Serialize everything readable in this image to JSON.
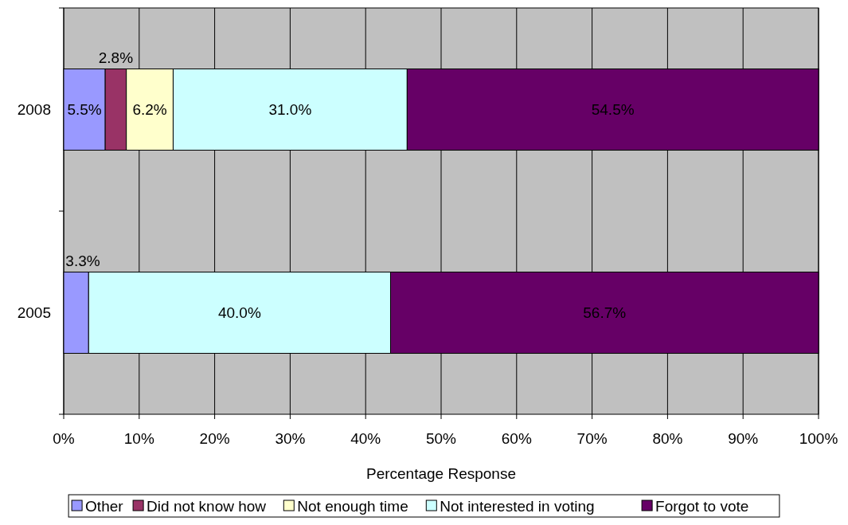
{
  "chart_data": {
    "type": "bar",
    "orientation": "horizontal",
    "stacked": true,
    "xlabel": "Percentage Response",
    "categories": [
      "2008",
      "2005"
    ],
    "xlim": [
      0,
      100
    ],
    "xticks": [
      {
        "value": 0,
        "label": "0%"
      },
      {
        "value": 10,
        "label": "10%"
      },
      {
        "value": 20,
        "label": "20%"
      },
      {
        "value": 30,
        "label": "30%"
      },
      {
        "value": 40,
        "label": "40%"
      },
      {
        "value": 50,
        "label": "50%"
      },
      {
        "value": 60,
        "label": "60%"
      },
      {
        "value": 70,
        "label": "70%"
      },
      {
        "value": 80,
        "label": "80%"
      },
      {
        "value": 90,
        "label": "90%"
      },
      {
        "value": 100,
        "label": "100%"
      }
    ],
    "grid": "x",
    "legend": "bottom",
    "series": [
      {
        "name": "Other",
        "color": "#9999ff",
        "values": [
          5.5,
          3.3
        ],
        "value_labels": [
          "5.5%",
          "3.3%"
        ]
      },
      {
        "name": "Did not know how",
        "color": "#993366",
        "values": [
          2.8,
          0
        ],
        "value_labels": [
          "2.8%",
          null
        ]
      },
      {
        "name": "Not enough time",
        "color": "#ffffcc",
        "values": [
          6.2,
          0
        ],
        "value_labels": [
          "6.2%",
          null
        ]
      },
      {
        "name": "Not interested in voting",
        "color": "#ccffff",
        "values": [
          31.0,
          40.0
        ],
        "value_labels": [
          "31.0%",
          "40.0%"
        ]
      },
      {
        "name": "Forgot to vote",
        "color": "#660066",
        "values": [
          54.5,
          56.7
        ],
        "value_labels": [
          "54.5%",
          "56.7%"
        ]
      }
    ]
  }
}
